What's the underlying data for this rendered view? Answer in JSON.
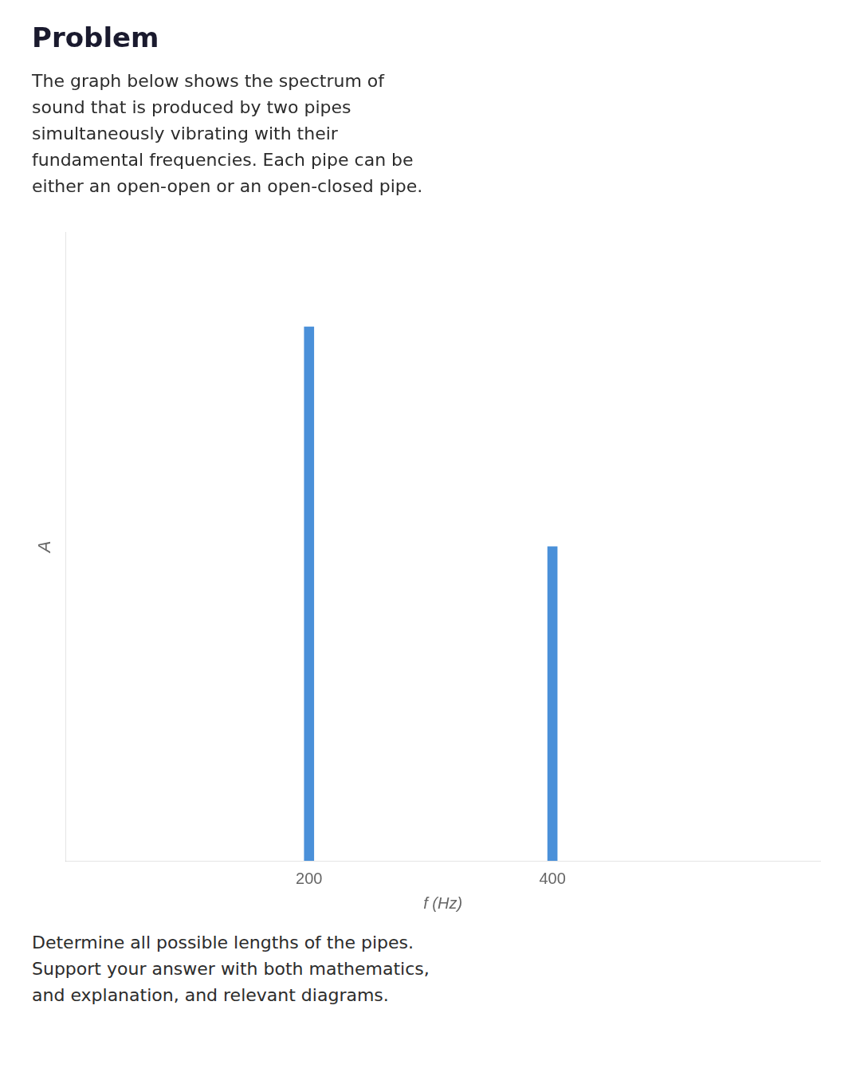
{
  "chart_data": {
    "type": "bar",
    "title": "Problem",
    "subtitle": "The graph below shows the spectrum of\nsound that is produced by two pipes\nsimultaneously vibrating with their\nfundamental frequencies. Each pipe can be\neither an open-open or an open-closed pipe.",
    "annotations": [
      "Determine all possible lengths of the pipes.\nSupport your answer with both mathematics,\nand explanation, and relevant diagrams."
    ],
    "x_label": "f (Hz)",
    "y_label": "A",
    "x": [
      200,
      400
    ],
    "values": [
      0.85,
      0.5
    ],
    "color": "#4a90d9",
    "xlim": [
      0,
      620
    ],
    "xticks": [
      200,
      400
    ],
    "ylim": [
      0,
      1.0
    ],
    "tick_labels": "x",
    "grid": false
  }
}
